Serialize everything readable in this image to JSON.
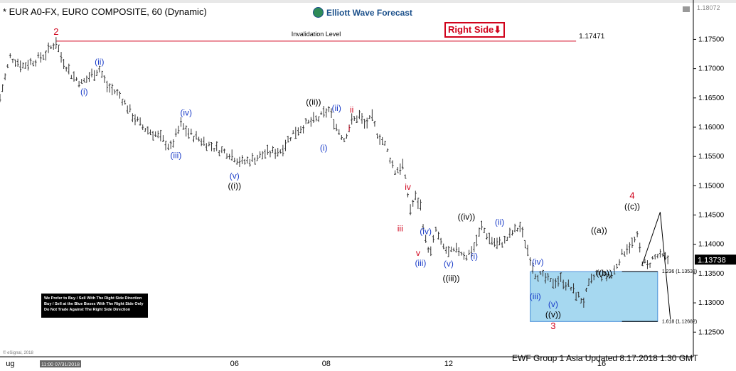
{
  "header": {
    "title": "* EUR A0-FX, EURO COMPOSITE, 60 (Dynamic)",
    "logo": "Elliott Wave Forecast",
    "right_side": "Right Side⬇",
    "top_right_price": "1.18072"
  },
  "legend_box": [
    "We Prefer to Buy / Sell With The Right Side Direction",
    "Buy / Sell at the Blue Boxes With The Right Side Only",
    "Do Not Trade Against The Right Side Direction"
  ],
  "footer": "EWF Group 1 Asia Updated 8.17.2018 1:30 GMT",
  "copyright": "© eSignal, 2018",
  "time_tag": "11:00 07/31/2018",
  "colors": {
    "bars": "#333333",
    "wave_blue": "#1a3cc8",
    "wave_red": "#d0021b",
    "wave_black": "#000000",
    "box_fill": "#a6d8f0",
    "box_edge": "#4a90d9",
    "invalidation": "#d0021b"
  },
  "chart_data": {
    "type": "ohlc",
    "ylim": [
      1.122,
      1.181
    ],
    "y_ticks": [
      "1.17500",
      "1.17000",
      "1.16500",
      "1.16000",
      "1.15500",
      "1.15000",
      "1.14500",
      "1.14000",
      "1.13500",
      "1.13000",
      "1.12500"
    ],
    "x_ticks": [
      {
        "label": "ug",
        "x": 4
      },
      {
        "label": "06",
        "x": 92
      },
      {
        "label": "08",
        "x": 128
      },
      {
        "label": "12",
        "x": 176
      },
      {
        "label": "16",
        "x": 236
      }
    ],
    "last_price": "1.13738",
    "invalidation": {
      "label": "Invalidation Level",
      "value": 1.17471,
      "value_label": "1.17471",
      "x_from": 22,
      "x_to": 226
    },
    "blue_box": {
      "x_from": 208,
      "x_to": 258,
      "y_from": 1.12682,
      "y_to": 1.13533
    },
    "fib_levels": [
      {
        "label": "1.236 (1.13533)",
        "value": 1.13533,
        "x_from": 244,
        "x_to": 258
      },
      {
        "label": "1.618 (1.12682)",
        "value": 1.12682,
        "x_from": 244,
        "x_to": 258
      }
    ],
    "projection": [
      [
        252,
        1.1366
      ],
      [
        259,
        1.1455
      ],
      [
        263,
        1.1272
      ]
    ],
    "path": [
      [
        0,
        1.165
      ],
      [
        4,
        1.172
      ],
      [
        9,
        1.1705
      ],
      [
        14,
        1.1715
      ],
      [
        18,
        1.1725
      ],
      [
        22,
        1.1747
      ],
      [
        24,
        1.172
      ],
      [
        28,
        1.169
      ],
      [
        32,
        1.1675
      ],
      [
        36,
        1.169
      ],
      [
        39,
        1.17
      ],
      [
        42,
        1.167
      ],
      [
        47,
        1.1655
      ],
      [
        52,
        1.162
      ],
      [
        56,
        1.16
      ],
      [
        62,
        1.1585
      ],
      [
        67,
        1.1565
      ],
      [
        71,
        1.1605
      ],
      [
        74,
        1.159
      ],
      [
        78,
        1.158
      ],
      [
        84,
        1.1565
      ],
      [
        90,
        1.1555
      ],
      [
        95,
        1.154
      ],
      [
        99,
        1.1545
      ],
      [
        104,
        1.1555
      ],
      [
        110,
        1.156
      ],
      [
        115,
        1.159
      ],
      [
        120,
        1.1605
      ],
      [
        125,
        1.1615
      ],
      [
        129,
        1.163
      ],
      [
        132,
        1.16
      ],
      [
        135,
        1.158
      ],
      [
        138,
        1.161
      ],
      [
        141,
        1.162
      ],
      [
        143,
        1.1605
      ],
      [
        146,
        1.1615
      ],
      [
        148,
        1.159
      ],
      [
        151,
        1.157
      ],
      [
        155,
        1.1525
      ],
      [
        158,
        1.1535
      ],
      [
        161,
        1.146
      ],
      [
        163,
        1.148
      ],
      [
        165,
        1.1465
      ],
      [
        167,
        1.1405
      ],
      [
        169,
        1.1385
      ],
      [
        171,
        1.1425
      ],
      [
        173,
        1.14
      ],
      [
        176,
        1.1385
      ],
      [
        180,
        1.139
      ],
      [
        183,
        1.138
      ],
      [
        186,
        1.1395
      ],
      [
        189,
        1.143
      ],
      [
        192,
        1.141
      ],
      [
        195,
        1.14
      ],
      [
        198,
        1.1405
      ],
      [
        201,
        1.142
      ],
      [
        204,
        1.143
      ],
      [
        207,
        1.139
      ],
      [
        210,
        1.135
      ],
      [
        213,
        1.1345
      ],
      [
        216,
        1.1335
      ],
      [
        220,
        1.134
      ],
      [
        224,
        1.1325
      ],
      [
        227,
        1.131
      ],
      [
        229,
        1.1303
      ],
      [
        231,
        1.133
      ],
      [
        234,
        1.135
      ],
      [
        237,
        1.1345
      ],
      [
        240,
        1.1345
      ],
      [
        243,
        1.1375
      ],
      [
        246,
        1.1395
      ],
      [
        248,
        1.14
      ],
      [
        250,
        1.1412
      ],
      [
        252,
        1.1372
      ],
      [
        254,
        1.1362
      ],
      [
        256,
        1.1375
      ],
      [
        258,
        1.138
      ],
      [
        260,
        1.1378
      ],
      [
        262,
        1.1374
      ]
    ],
    "x_range": [
      0,
      272
    ],
    "wave_labels": [
      {
        "text": "2",
        "x": 22,
        "y": 1.1758,
        "color": "red"
      },
      {
        "text": "(i)",
        "x": 33,
        "y": 1.1656,
        "color": "blue"
      },
      {
        "text": "(ii)",
        "x": 39,
        "y": 1.1707,
        "color": "blue"
      },
      {
        "text": "(iii)",
        "x": 69,
        "y": 1.1547,
        "color": "blue"
      },
      {
        "text": "(iv)",
        "x": 73,
        "y": 1.162,
        "color": "blue"
      },
      {
        "text": "(v)",
        "x": 92,
        "y": 1.1512,
        "color": "blue"
      },
      {
        "text": "((i))",
        "x": 92,
        "y": 1.1495,
        "color": "black"
      },
      {
        "text": "((ii))",
        "x": 123,
        "y": 1.1638,
        "color": "black"
      },
      {
        "text": "(i)",
        "x": 127,
        "y": 1.156,
        "color": "blue"
      },
      {
        "text": "(ii)",
        "x": 132,
        "y": 1.1628,
        "color": "blue"
      },
      {
        "text": "ii",
        "x": 138,
        "y": 1.1625,
        "color": "red"
      },
      {
        "text": "i",
        "x": 137,
        "y": 1.1593,
        "color": "red"
      },
      {
        "text": "iv",
        "x": 160,
        "y": 1.1493,
        "color": "red"
      },
      {
        "text": "iii",
        "x": 157,
        "y": 1.1422,
        "color": "red"
      },
      {
        "text": "v",
        "x": 164,
        "y": 1.138,
        "color": "red"
      },
      {
        "text": "(iv)",
        "x": 167,
        "y": 1.1417,
        "color": "blue"
      },
      {
        "text": "(iii)",
        "x": 165,
        "y": 1.1363,
        "color": "blue"
      },
      {
        "text": "((iv))",
        "x": 183,
        "y": 1.1442,
        "color": "black"
      },
      {
        "text": "(v)",
        "x": 176,
        "y": 1.1362,
        "color": "blue"
      },
      {
        "text": "((iii))",
        "x": 177,
        "y": 1.1337,
        "color": "black"
      },
      {
        "text": "(i)",
        "x": 186,
        "y": 1.1375,
        "color": "blue"
      },
      {
        "text": "(ii)",
        "x": 196,
        "y": 1.1433,
        "color": "blue"
      },
      {
        "text": "(iv)",
        "x": 211,
        "y": 1.1365,
        "color": "blue"
      },
      {
        "text": "(iii)",
        "x": 210,
        "y": 1.1306,
        "color": "blue"
      },
      {
        "text": "(v)",
        "x": 217,
        "y": 1.1293,
        "color": "blue"
      },
      {
        "text": "((v))",
        "x": 217,
        "y": 1.1275,
        "color": "black"
      },
      {
        "text": "3",
        "x": 217,
        "y": 1.1255,
        "color": "red"
      },
      {
        "text": "((a))",
        "x": 235,
        "y": 1.1419,
        "color": "black"
      },
      {
        "text": "((b))",
        "x": 237,
        "y": 1.1346,
        "color": "black"
      },
      {
        "text": "4",
        "x": 248,
        "y": 1.1478,
        "color": "red"
      },
      {
        "text": "((c))",
        "x": 248,
        "y": 1.146,
        "color": "black"
      }
    ]
  }
}
